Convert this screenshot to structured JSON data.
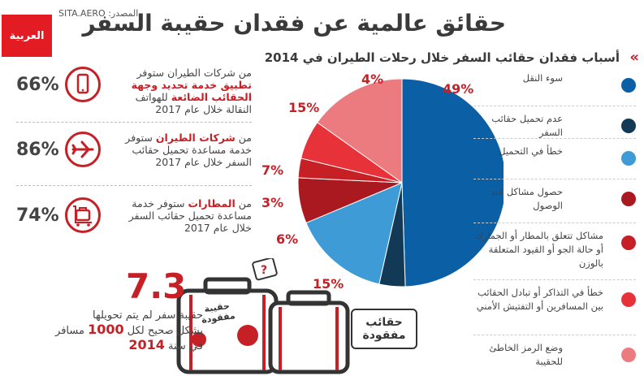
{
  "header": {
    "logo_text": "العربية",
    "source": "المصدر: SITA.AERO",
    "title": "حقائق عالمية عن فقدان حقيبة السفر"
  },
  "chart_data": {
    "type": "pie",
    "title": "أسباب فقدان حقائب السفر خلال رحلات الطيران في 2014",
    "slices": [
      {
        "label": "سوء النقل",
        "value": 49,
        "display": "49%",
        "color": "#0b5fa5"
      },
      {
        "label": "عدم تحميل حقائب السفر",
        "value": 4,
        "display": "4%",
        "color": "#123a57"
      },
      {
        "label": "خطأ في التحميل",
        "value": 15,
        "display": "15%",
        "color": "#3f9bd5"
      },
      {
        "label": "حصول مشاكل عند الوصول",
        "value": 7,
        "display": "7%",
        "color": "#a9191f"
      },
      {
        "label": "مشاكل تتعلق بالمطار أو الجمارك أو حالة الجو أو القيود المتعلقة بالوزن",
        "value": 3,
        "display": "3%",
        "color": "#c62026"
      },
      {
        "label": "خطأ في التذاكر أو تبادل الحقائب بين المسافرين أو التفتيش الأمني",
        "value": 6,
        "display": "6%",
        "color": "#e8323a"
      },
      {
        "label": "وضع الرمز الخاطئ للحقيبة",
        "value": 15,
        "display": "15%",
        "color": "#ec7b7f"
      }
    ]
  },
  "stats": [
    {
      "percent": "66%",
      "pre": "من شركات الطيران ستوفر",
      "highlight": "تطبيق خدمة تحديد وجهة الحقائب الضائعة",
      "post": "للهواتف النقالة خلال عام 2017",
      "icon": "phone-icon"
    },
    {
      "percent": "86%",
      "pre": "من",
      "highlight": "شركات الطيران",
      "post": "ستوفر خدمة مساعدة تحميل حقائب السفر خلال عام 2017",
      "icon": "airplane-icon"
    },
    {
      "percent": "74%",
      "pre": "من",
      "highlight": "المطارات",
      "post": "ستوفر خدمة مساعدة تحميل حقائب السفر خلال عام 2017",
      "icon": "luggage-cart-icon"
    }
  ],
  "bags": {
    "number": "7.3",
    "line1": "حقيبة سفر لم يتم تحويلها",
    "line2_pre": "بشكل صحيح لكل",
    "line2_num": "1000",
    "line2_post": "مسافر",
    "line3_pre": "في سنة",
    "line3_year": "2014",
    "tag1": "حقيبة مفقودة",
    "tag2": "حقائب مفقودة",
    "question": "?"
  },
  "colors": {
    "accent": "#c62026"
  }
}
